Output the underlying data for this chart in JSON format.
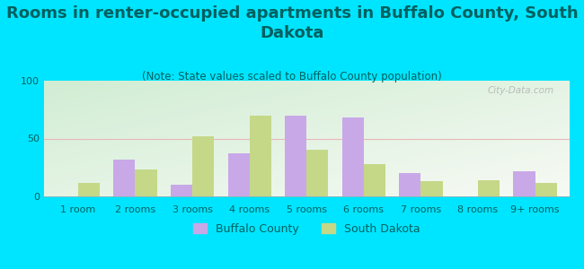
{
  "title": "Rooms in renter-occupied apartments in Buffalo County, South\nDakota",
  "subtitle": "(Note: State values scaled to Buffalo County population)",
  "categories": [
    "1 room",
    "2 rooms",
    "3 rooms",
    "4 rooms",
    "5 rooms",
    "6 rooms",
    "7 rooms",
    "8 rooms",
    "9+ rooms"
  ],
  "buffalo_county": [
    0,
    32,
    10,
    37,
    70,
    68,
    20,
    0,
    22
  ],
  "south_dakota": [
    12,
    23,
    52,
    70,
    40,
    28,
    13,
    14,
    12
  ],
  "buffalo_color": "#c9a8e8",
  "south_dakota_color": "#c5d888",
  "bg_outer": "#00e5ff",
  "ylim": [
    0,
    100
  ],
  "yticks": [
    0,
    50,
    100
  ],
  "bar_width": 0.38,
  "title_fontsize": 13,
  "subtitle_fontsize": 8.5,
  "tick_fontsize": 8,
  "legend_fontsize": 9,
  "title_color": "#006060",
  "subtitle_color": "#006060",
  "watermark": "City-Data.com"
}
